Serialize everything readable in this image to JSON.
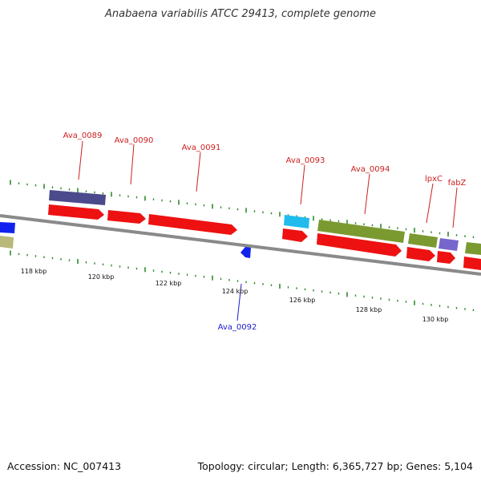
{
  "title": "Anabaena variabilis ATCC 29413, complete genome",
  "footer": {
    "accession": "Accession: NC_007413",
    "topology": "Topology: circular; Length: 6,365,727 bp; Genes: 5,104"
  },
  "colors": {
    "backbone": "#888888",
    "cds": "#ee1111",
    "tick": "#2e8b2e",
    "label_forward": "#cc1f1f",
    "label_reverse": "#1a1acc",
    "cog_purple": "#4a4a8c",
    "cog_cyan": "#22bbee",
    "cog_olive": "#7a9a30",
    "cog_lavender": "#7766cc",
    "cog_khaki": "#b8b87a",
    "cog_blue": "#1122ee"
  },
  "tick_labels": [
    "118 kbp",
    "120 kbp",
    "122 kbp",
    "124 kbp",
    "126 kbp",
    "128 kbp",
    "130 kbp"
  ],
  "gene_labels": [
    {
      "name": "Ava_0089",
      "strand": "forward"
    },
    {
      "name": "Ava_0090",
      "strand": "forward"
    },
    {
      "name": "Ava_0091",
      "strand": "forward"
    },
    {
      "name": "Ava_0092",
      "strand": "reverse"
    },
    {
      "name": "Ava_0093",
      "strand": "forward"
    },
    {
      "name": "Ava_0094",
      "strand": "forward"
    },
    {
      "name": "lpxC",
      "strand": "forward"
    },
    {
      "name": "fabZ",
      "strand": "forward"
    }
  ]
}
